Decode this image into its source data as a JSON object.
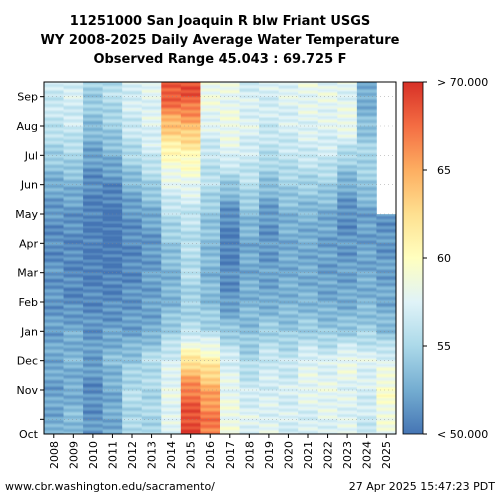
{
  "chart_data": {
    "type": "heatmap",
    "title_lines": [
      "11251000 San Joaquin R blw Friant USGS",
      "WY 2008-2025 Daily Average Water Temperature",
      "Observed Range 45.043 : 69.725 F"
    ],
    "years": [
      "2008",
      "2009",
      "2010",
      "2011",
      "2012",
      "2013",
      "2014",
      "2015",
      "2016",
      "2017",
      "2018",
      "2019",
      "2020",
      "2021",
      "2022",
      "2023",
      "2024",
      "2025"
    ],
    "month_ticks": [
      "Oct",
      "Nov",
      "Dec",
      "Jan",
      "Feb",
      "Mar",
      "Apr",
      "May",
      "Jun",
      "Jul",
      "Aug",
      "Sep"
    ],
    "colorbar": {
      "range": [
        50,
        70
      ],
      "ticks": [
        "< 50.000",
        "55",
        "60",
        "65",
        "> 70.000"
      ],
      "colors": [
        "#4575b4",
        "#74add1",
        "#abd9e9",
        "#e0f3f8",
        "#ffffbf",
        "#fee090",
        "#fdae61",
        "#f46d43",
        "#d73027"
      ]
    },
    "monthly_mean_temp_f": [
      [
        52.5,
        52.0,
        52.5,
        52.0,
        51.5,
        51.5,
        51.0,
        51.5,
        52.5,
        54.5,
        56.0,
        56.5
      ],
      [
        53.5,
        52.5,
        53.0,
        52.5,
        51.0,
        51.0,
        51.0,
        51.5,
        53.0,
        55.0,
        56.5,
        57.0
      ],
      [
        51.5,
        51.0,
        52.0,
        51.5,
        51.0,
        50.5,
        50.5,
        50.5,
        51.0,
        52.0,
        53.5,
        54.5
      ],
      [
        52.5,
        52.5,
        53.5,
        52.0,
        51.0,
        50.5,
        50.0,
        50.0,
        51.0,
        53.0,
        54.5,
        55.5
      ],
      [
        55.0,
        55.5,
        54.0,
        52.0,
        51.5,
        51.0,
        51.0,
        51.5,
        53.0,
        55.0,
        56.5,
        57.0
      ],
      [
        55.0,
        55.0,
        55.5,
        52.5,
        52.0,
        52.0,
        51.5,
        52.5,
        54.5,
        56.5,
        57.5,
        57.5
      ],
      [
        57.5,
        58.0,
        57.0,
        54.5,
        53.0,
        53.0,
        54.0,
        55.5,
        57.5,
        60.0,
        64.0,
        68.5
      ],
      [
        69.0,
        67.0,
        62.0,
        55.5,
        54.5,
        55.5,
        55.5,
        56.0,
        58.0,
        60.5,
        64.5,
        68.5
      ],
      [
        67.0,
        65.0,
        61.0,
        55.0,
        53.5,
        53.0,
        53.5,
        54.0,
        55.5,
        56.0,
        57.5,
        58.5
      ],
      [
        58.5,
        58.0,
        57.0,
        54.0,
        51.5,
        51.0,
        50.5,
        51.0,
        54.0,
        57.5,
        58.5,
        58.0
      ],
      [
        57.5,
        56.5,
        55.0,
        53.5,
        53.0,
        52.5,
        52.5,
        53.5,
        55.5,
        56.5,
        57.5,
        57.0
      ],
      [
        57.5,
        57.0,
        56.5,
        54.5,
        52.5,
        52.0,
        51.5,
        51.5,
        53.5,
        55.5,
        56.5,
        57.0
      ],
      [
        57.0,
        57.0,
        56.0,
        54.0,
        53.0,
        52.5,
        52.5,
        53.0,
        54.5,
        56.0,
        57.0,
        57.5
      ],
      [
        57.0,
        58.0,
        57.5,
        54.5,
        53.0,
        52.5,
        52.5,
        53.0,
        54.5,
        56.5,
        57.5,
        58.0
      ],
      [
        57.5,
        58.0,
        57.0,
        54.0,
        52.5,
        52.0,
        52.0,
        52.5,
        54.5,
        56.5,
        57.5,
        58.0
      ],
      [
        57.5,
        57.5,
        58.5,
        54.0,
        52.5,
        52.0,
        51.5,
        51.0,
        52.5,
        55.0,
        58.5,
        57.5
      ],
      [
        56.5,
        57.0,
        57.5,
        54.5,
        53.0,
        52.5,
        52.0,
        52.0,
        54.0,
        55.0,
        53.5,
        52.5
      ],
      [
        58.5,
        59.5,
        57.5,
        53.5,
        52.5,
        52.0,
        51.5,
        null,
        null,
        null,
        null,
        null
      ]
    ]
  },
  "footer": {
    "left": "www.cbr.washington.edu/sacramento/",
    "right": "27 Apr 2025 15:47:23 PDT"
  }
}
